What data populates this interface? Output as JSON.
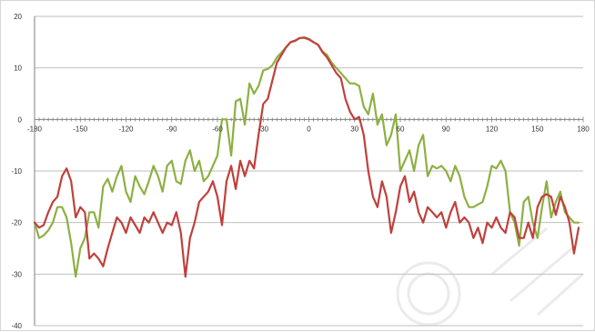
{
  "chart_data": {
    "type": "line",
    "xlim": [
      -180,
      180
    ],
    "ylim": [
      -40,
      20
    ],
    "x_ticks": [
      -180,
      -150,
      -120,
      -90,
      -60,
      -30,
      0,
      30,
      60,
      90,
      120,
      150,
      180
    ],
    "y_ticks": [
      20,
      10,
      0,
      -10,
      -20,
      -30,
      -40
    ],
    "grid": "horizontal",
    "legend": "none",
    "series": [
      {
        "color": "#8db043",
        "points": [
          [
            -180,
            -20
          ],
          [
            -177,
            -23
          ],
          [
            -174,
            -22.5
          ],
          [
            -171,
            -21.5
          ],
          [
            -168,
            -20
          ],
          [
            -165,
            -17
          ],
          [
            -162,
            -17
          ],
          [
            -159,
            -19
          ],
          [
            -156,
            -24
          ],
          [
            -153,
            -30.5
          ],
          [
            -150,
            -25
          ],
          [
            -147,
            -23
          ],
          [
            -144,
            -18
          ],
          [
            -141,
            -18
          ],
          [
            -138,
            -21
          ],
          [
            -135,
            -13
          ],
          [
            -132,
            -11.5
          ],
          [
            -129,
            -14
          ],
          [
            -126,
            -11
          ],
          [
            -123,
            -9
          ],
          [
            -120,
            -14
          ],
          [
            -117,
            -16
          ],
          [
            -114,
            -11
          ],
          [
            -111,
            -13
          ],
          [
            -108,
            -14.5
          ],
          [
            -105,
            -12
          ],
          [
            -102,
            -9
          ],
          [
            -99,
            -11
          ],
          [
            -96,
            -14
          ],
          [
            -93,
            -9
          ],
          [
            -90,
            -8
          ],
          [
            -87,
            -12
          ],
          [
            -84,
            -12.5
          ],
          [
            -81,
            -8
          ],
          [
            -78,
            -6
          ],
          [
            -75,
            -10
          ],
          [
            -72,
            -8
          ],
          [
            -69,
            -12
          ],
          [
            -66,
            -11
          ],
          [
            -63,
            -9
          ],
          [
            -60,
            -7
          ],
          [
            -57,
            0
          ],
          [
            -54,
            0
          ],
          [
            -51,
            -7
          ],
          [
            -48,
            3.5
          ],
          [
            -45,
            4
          ],
          [
            -42,
            -1
          ],
          [
            -39,
            7
          ],
          [
            -36,
            5
          ],
          [
            -33,
            6.5
          ],
          [
            -30,
            9.5
          ],
          [
            -27,
            9.8
          ],
          [
            -24,
            10.5
          ],
          [
            -21,
            12
          ],
          [
            -18,
            13
          ],
          [
            -15,
            14
          ],
          [
            -12,
            15
          ],
          [
            -9,
            15.2
          ],
          [
            -6,
            15.8
          ],
          [
            -3,
            15.8
          ],
          [
            0,
            15.5
          ],
          [
            3,
            15
          ],
          [
            6,
            14.5
          ],
          [
            9,
            13.2
          ],
          [
            12,
            12.5
          ],
          [
            15,
            11
          ],
          [
            18,
            10
          ],
          [
            21,
            9
          ],
          [
            24,
            8
          ],
          [
            27,
            7
          ],
          [
            30,
            7
          ],
          [
            33,
            6.5
          ],
          [
            36,
            2.5
          ],
          [
            39,
            1
          ],
          [
            42,
            5
          ],
          [
            45,
            -1
          ],
          [
            48,
            1
          ],
          [
            51,
            -5
          ],
          [
            54,
            -3
          ],
          [
            57,
            1
          ],
          [
            60,
            -10
          ],
          [
            63,
            -8
          ],
          [
            66,
            -6
          ],
          [
            69,
            -10
          ],
          [
            72,
            -5
          ],
          [
            75,
            -3
          ],
          [
            78,
            -11
          ],
          [
            81,
            -9
          ],
          [
            84,
            -9.5
          ],
          [
            87,
            -9
          ],
          [
            90,
            -10
          ],
          [
            93,
            -12
          ],
          [
            96,
            -9
          ],
          [
            99,
            -11
          ],
          [
            102,
            -15
          ],
          [
            105,
            -17
          ],
          [
            108,
            -17
          ],
          [
            111,
            -16.5
          ],
          [
            114,
            -16
          ],
          [
            117,
            -13
          ],
          [
            120,
            -9
          ],
          [
            123,
            -9.5
          ],
          [
            126,
            -8
          ],
          [
            129,
            -10
          ],
          [
            132,
            -18
          ],
          [
            135,
            -20
          ],
          [
            138,
            -24.5
          ],
          [
            141,
            -16
          ],
          [
            144,
            -15
          ],
          [
            147,
            -20
          ],
          [
            150,
            -23
          ],
          [
            153,
            -17
          ],
          [
            156,
            -12
          ],
          [
            159,
            -19
          ],
          [
            162,
            -16
          ],
          [
            165,
            -14
          ],
          [
            168,
            -18
          ],
          [
            171,
            -19
          ],
          [
            174,
            -20
          ],
          [
            177,
            -20
          ]
        ]
      },
      {
        "color": "#c0403c",
        "points": [
          [
            -180,
            -20
          ],
          [
            -177,
            -21
          ],
          [
            -174,
            -20.5
          ],
          [
            -171,
            -18
          ],
          [
            -168,
            -16
          ],
          [
            -165,
            -15
          ],
          [
            -162,
            -11
          ],
          [
            -159,
            -9.5
          ],
          [
            -156,
            -12
          ],
          [
            -153,
            -19
          ],
          [
            -150,
            -17
          ],
          [
            -147,
            -18
          ],
          [
            -144,
            -27
          ],
          [
            -141,
            -26
          ],
          [
            -138,
            -27
          ],
          [
            -135,
            -28.5
          ],
          [
            -132,
            -25
          ],
          [
            -129,
            -22
          ],
          [
            -126,
            -19
          ],
          [
            -123,
            -20
          ],
          [
            -120,
            -22
          ],
          [
            -117,
            -19
          ],
          [
            -114,
            -20.5
          ],
          [
            -111,
            -22
          ],
          [
            -108,
            -19
          ],
          [
            -105,
            -20
          ],
          [
            -102,
            -18
          ],
          [
            -99,
            -20
          ],
          [
            -96,
            -22
          ],
          [
            -93,
            -20
          ],
          [
            -90,
            -20.5
          ],
          [
            -87,
            -18
          ],
          [
            -84,
            -22
          ],
          [
            -81,
            -30.5
          ],
          [
            -78,
            -23
          ],
          [
            -75,
            -20
          ],
          [
            -72,
            -16
          ],
          [
            -69,
            -15
          ],
          [
            -66,
            -14
          ],
          [
            -63,
            -12
          ],
          [
            -60,
            -15
          ],
          [
            -57,
            -20.5
          ],
          [
            -54,
            -12
          ],
          [
            -51,
            -9
          ],
          [
            -48,
            -13.5
          ],
          [
            -45,
            -8
          ],
          [
            -42,
            -11
          ],
          [
            -39,
            -8
          ],
          [
            -36,
            -9.5
          ],
          [
            -33,
            -3
          ],
          [
            -30,
            3
          ],
          [
            -27,
            4
          ],
          [
            -24,
            7.5
          ],
          [
            -21,
            11
          ],
          [
            -18,
            12.5
          ],
          [
            -15,
            14
          ],
          [
            -12,
            15
          ],
          [
            -9,
            15.3
          ],
          [
            -6,
            15.8
          ],
          [
            -3,
            15.9
          ],
          [
            0,
            15.6
          ],
          [
            3,
            15
          ],
          [
            6,
            14.5
          ],
          [
            9,
            13
          ],
          [
            12,
            12
          ],
          [
            15,
            10.5
          ],
          [
            18,
            9
          ],
          [
            21,
            8
          ],
          [
            24,
            4
          ],
          [
            27,
            1.5
          ],
          [
            30,
            0
          ],
          [
            33,
            0.5
          ],
          [
            36,
            -3
          ],
          [
            39,
            -10
          ],
          [
            42,
            -15
          ],
          [
            45,
            -17
          ],
          [
            48,
            -12
          ],
          [
            51,
            -15
          ],
          [
            54,
            -22
          ],
          [
            57,
            -18
          ],
          [
            60,
            -13
          ],
          [
            63,
            -11
          ],
          [
            66,
            -16
          ],
          [
            69,
            -14
          ],
          [
            72,
            -18
          ],
          [
            75,
            -20
          ],
          [
            78,
            -17
          ],
          [
            81,
            -18
          ],
          [
            84,
            -19
          ],
          [
            87,
            -18
          ],
          [
            90,
            -21
          ],
          [
            93,
            -18
          ],
          [
            96,
            -16
          ],
          [
            99,
            -20
          ],
          [
            102,
            -19
          ],
          [
            105,
            -20
          ],
          [
            108,
            -23
          ],
          [
            111,
            -21
          ],
          [
            114,
            -24
          ],
          [
            117,
            -20
          ],
          [
            120,
            -21
          ],
          [
            123,
            -19
          ],
          [
            126,
            -21
          ],
          [
            129,
            -22
          ],
          [
            132,
            -18
          ],
          [
            135,
            -19
          ],
          [
            138,
            -23
          ],
          [
            141,
            -23
          ],
          [
            144,
            -20
          ],
          [
            147,
            -23
          ],
          [
            150,
            -17
          ],
          [
            153,
            -15
          ],
          [
            156,
            -14.5
          ],
          [
            159,
            -15
          ],
          [
            162,
            -18.5
          ],
          [
            165,
            -15
          ],
          [
            168,
            -17
          ],
          [
            171,
            -20
          ],
          [
            174,
            -26
          ],
          [
            177,
            -21
          ]
        ]
      }
    ]
  }
}
